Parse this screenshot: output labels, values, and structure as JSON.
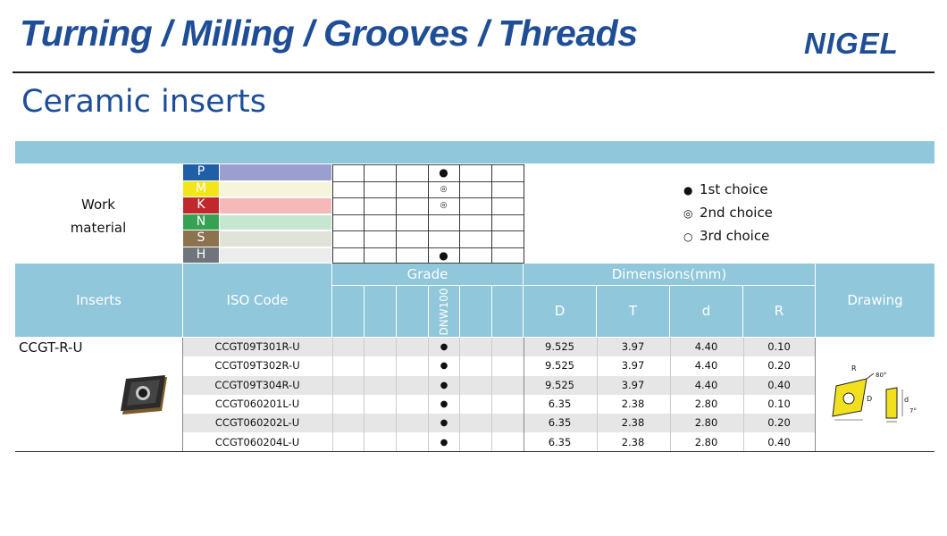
{
  "header": {
    "title": "Turning / Milling / Grooves / Threads",
    "logo": "NIGEL"
  },
  "section_title": "Ceramic inserts",
  "work_material": {
    "label_line1": "Work",
    "label_line2": "material",
    "materials": [
      {
        "letter": "P",
        "letter_color": "#1f5fa8",
        "bar_color": "#9b9fcf",
        "choice": "1st"
      },
      {
        "letter": "M",
        "letter_color": "#f2e61a",
        "bar_color": "#f5f5dc",
        "choice": "2nd"
      },
      {
        "letter": "K",
        "letter_color": "#c0282d",
        "bar_color": "#f6b9b9",
        "choice": "2nd"
      },
      {
        "letter": "N",
        "letter_color": "#35a153",
        "bar_color": "#c7e6cf",
        "choice": ""
      },
      {
        "letter": "S",
        "letter_color": "#8d7250",
        "bar_color": "#dfe3d8",
        "choice": ""
      },
      {
        "letter": "H",
        "letter_color": "#6f757a",
        "bar_color": "#ececec",
        "choice": "1st"
      }
    ]
  },
  "legend": [
    {
      "symbol": "●",
      "label": "1st choice"
    },
    {
      "symbol": "◎",
      "label": "2nd choice"
    },
    {
      "symbol": "○",
      "label": "3rd choice"
    }
  ],
  "table_headers": {
    "inserts": "Inserts",
    "iso_code": "ISO Code",
    "grade": "Grade",
    "grade_name": "DNW100",
    "dimensions": "Dimensions(mm)",
    "dims": [
      "D",
      "T",
      "d",
      "R"
    ],
    "drawing": "Drawing"
  },
  "insert_family": "CCGT-R-U",
  "rows": [
    {
      "iso": "CCGT09T301R-U",
      "grade_mark": "●",
      "D": "9.525",
      "T": "3.97",
      "d": "4.40",
      "R": "0.10"
    },
    {
      "iso": "CCGT09T302R-U",
      "grade_mark": "●",
      "D": "9.525",
      "T": "3.97",
      "d": "4.40",
      "R": "0.20"
    },
    {
      "iso": "CCGT09T304R-U",
      "grade_mark": "●",
      "D": "9.525",
      "T": "3.97",
      "d": "4.40",
      "R": "0.40"
    },
    {
      "iso": "CCGT060201L-U",
      "grade_mark": "●",
      "D": "6.35",
      "T": "2.38",
      "d": "2.80",
      "R": "0.10"
    },
    {
      "iso": "CCGT060202L-U",
      "grade_mark": "●",
      "D": "6.35",
      "T": "2.38",
      "d": "2.80",
      "R": "0.20"
    },
    {
      "iso": "CCGT060204L-U",
      "grade_mark": "●",
      "D": "6.35",
      "T": "2.38",
      "d": "2.80",
      "R": "0.40"
    }
  ],
  "drawing_labels": {
    "R": "R",
    "angle": "80°",
    "D": "D",
    "d": "d",
    "clearance": "7°"
  },
  "colors": {
    "brand": "#1f4e96",
    "header_band": "#90c7da",
    "row_shade": "#e6e6e6"
  }
}
